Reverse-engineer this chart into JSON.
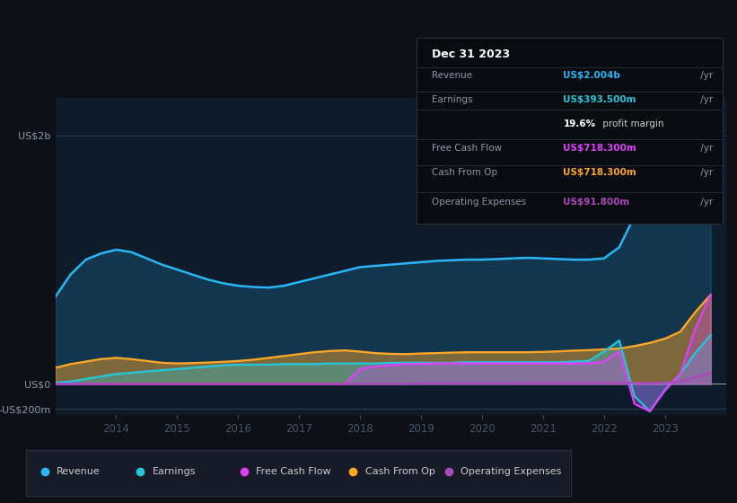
{
  "bg_color": "#0d1117",
  "plot_bg_color": "#0d1b2a",
  "ylim": [
    -250,
    2300
  ],
  "yticks": [
    -200,
    0,
    2000
  ],
  "ytick_labels": [
    "-US$200m",
    "US$0",
    "US$2b"
  ],
  "years": [
    2013.0,
    2013.25,
    2013.5,
    2013.75,
    2014.0,
    2014.25,
    2014.5,
    2014.75,
    2015.0,
    2015.25,
    2015.5,
    2015.75,
    2016.0,
    2016.25,
    2016.5,
    2016.75,
    2017.0,
    2017.25,
    2017.5,
    2017.75,
    2018.0,
    2018.25,
    2018.5,
    2018.75,
    2019.0,
    2019.25,
    2019.5,
    2019.75,
    2020.0,
    2020.25,
    2020.5,
    2020.75,
    2021.0,
    2021.25,
    2021.5,
    2021.75,
    2022.0,
    2022.25,
    2022.5,
    2022.75,
    2023.0,
    2023.25,
    2023.5,
    2023.75
  ],
  "revenue": [
    700,
    880,
    1000,
    1050,
    1080,
    1060,
    1010,
    960,
    920,
    880,
    840,
    810,
    790,
    780,
    775,
    790,
    820,
    850,
    880,
    910,
    940,
    950,
    960,
    970,
    980,
    990,
    995,
    1000,
    1000,
    1005,
    1010,
    1015,
    1010,
    1005,
    1000,
    1000,
    1010,
    1100,
    1350,
    1650,
    1900,
    2000,
    2050,
    2004
  ],
  "earnings": [
    10,
    20,
    40,
    60,
    80,
    90,
    100,
    110,
    120,
    130,
    140,
    150,
    155,
    155,
    155,
    160,
    160,
    160,
    165,
    165,
    165,
    165,
    170,
    170,
    170,
    170,
    170,
    175,
    175,
    175,
    175,
    175,
    175,
    175,
    180,
    185,
    260,
    350,
    -100,
    -220,
    -50,
    80,
    250,
    393.5
  ],
  "free_cash_flow": [
    0,
    0,
    0,
    0,
    0,
    0,
    0,
    0,
    0,
    0,
    0,
    0,
    0,
    0,
    0,
    0,
    0,
    0,
    0,
    0,
    120,
    140,
    150,
    160,
    160,
    165,
    165,
    165,
    165,
    165,
    165,
    165,
    165,
    165,
    165,
    165,
    180,
    260,
    -160,
    -220,
    -50,
    80,
    450,
    718.3
  ],
  "cash_from_op": [
    130,
    160,
    180,
    200,
    210,
    200,
    185,
    170,
    165,
    168,
    172,
    178,
    185,
    195,
    210,
    225,
    240,
    255,
    265,
    270,
    260,
    248,
    242,
    240,
    245,
    248,
    252,
    255,
    255,
    255,
    255,
    255,
    258,
    262,
    268,
    272,
    278,
    285,
    305,
    330,
    365,
    420,
    580,
    718.3
  ],
  "operating_expenses": [
    0,
    0,
    0,
    0,
    0,
    0,
    0,
    0,
    0,
    0,
    0,
    0,
    0,
    0,
    0,
    0,
    0,
    0,
    0,
    0,
    0,
    0,
    0,
    0,
    5,
    5,
    5,
    6,
    6,
    6,
    6,
    7,
    7,
    7,
    7,
    7,
    8,
    8,
    8,
    8,
    10,
    20,
    55,
    91.8
  ],
  "revenue_color": "#29b6f6",
  "earnings_color": "#26c6da",
  "free_cash_flow_color": "#e040fb",
  "cash_from_op_color": "#ffa726",
  "operating_expenses_color": "#ab47bc",
  "legend_bg": "#161b27",
  "info_box_bg": "#080c10",
  "xtick_labels": [
    "2014",
    "2015",
    "2016",
    "2017",
    "2018",
    "2019",
    "2020",
    "2021",
    "2022",
    "2023"
  ],
  "xtick_positions": [
    2014,
    2015,
    2016,
    2017,
    2018,
    2019,
    2020,
    2021,
    2022,
    2023
  ],
  "info_title": "Dec 31 2023",
  "info_rows": [
    {
      "label": "Revenue",
      "value": "US$2.004b",
      "unit": " /yr",
      "pct": null,
      "color": "#29b6f6"
    },
    {
      "label": "Earnings",
      "value": "US$393.500m",
      "unit": " /yr",
      "pct": null,
      "color": "#26c6da"
    },
    {
      "label": "",
      "value": "19.6%",
      "unit": " profit margin",
      "pct": true,
      "color": "#ffffff"
    },
    {
      "label": "Free Cash Flow",
      "value": "US$718.300m",
      "unit": " /yr",
      "pct": null,
      "color": "#e040fb"
    },
    {
      "label": "Cash From Op",
      "value": "US$718.300m",
      "unit": " /yr",
      "pct": null,
      "color": "#ffa726"
    },
    {
      "label": "Operating Expenses",
      "value": "US$91.800m",
      "unit": " /yr",
      "pct": null,
      "color": "#ab47bc"
    }
  ],
  "legend_items": [
    {
      "label": "Revenue",
      "color": "#29b6f6"
    },
    {
      "label": "Earnings",
      "color": "#26c6da"
    },
    {
      "label": "Free Cash Flow",
      "color": "#e040fb"
    },
    {
      "label": "Cash From Op",
      "color": "#ffa726"
    },
    {
      "label": "Operating Expenses",
      "color": "#ab47bc"
    }
  ]
}
